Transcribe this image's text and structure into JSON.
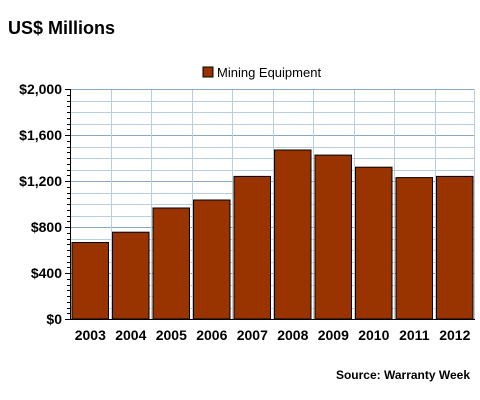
{
  "chart_data": {
    "type": "bar",
    "title": "US$ Millions",
    "source": "Source: Warranty Week",
    "categories": [
      "2003",
      "2004",
      "2005",
      "2006",
      "2007",
      "2008",
      "2009",
      "2010",
      "2011",
      "2012"
    ],
    "series": [
      {
        "name": "Mining Equipment",
        "color": "#993300",
        "values": [
          665,
          755,
          965,
          1035,
          1240,
          1470,
          1425,
          1320,
          1230,
          1240
        ]
      }
    ],
    "ylim": [
      0,
      2000
    ],
    "yticks": [
      0,
      400,
      800,
      1200,
      1600,
      2000
    ],
    "ytick_labels": [
      "$0",
      "$400",
      "$800",
      "$1,200",
      "$1,600",
      "$2,000"
    ],
    "grid": true,
    "legend_position": "top-center"
  }
}
